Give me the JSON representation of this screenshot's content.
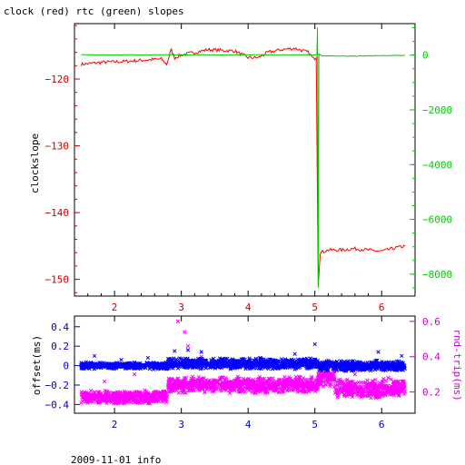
{
  "title": "clock (red) rtc (green) slopes",
  "footer": "2009-11-01 info",
  "colors": {
    "clock": "#ff0000",
    "rtc": "#00cc00",
    "offset": "#0000ff",
    "rndtrip": "#ff00ff",
    "axis_left_top": "#cc0000",
    "axis_right_top": "#00cc00",
    "axis_left_bottom": "#0000cc",
    "axis_right_bottom": "#cc00cc"
  },
  "chart_data": [
    {
      "type": "line",
      "name": "top",
      "title": "clock (red) rtc (green) slopes",
      "ylabel": "clockslope",
      "xlim": [
        1.4,
        6.5
      ],
      "ylim": [
        -152.5,
        -111.7
      ],
      "y2lim": [
        -8800,
        1150
      ],
      "xticks": [
        2,
        3,
        4,
        5,
        6
      ],
      "yticks": [
        -120,
        -130,
        -140,
        -150
      ],
      "y2ticks": [
        0,
        -2000,
        -4000,
        -6000,
        -8000
      ],
      "grid": false,
      "series": [
        {
          "name": "clock",
          "axis": "left",
          "x": [
            1.5,
            1.8,
            2.1,
            2.4,
            2.7,
            2.78,
            2.85,
            2.9,
            3.0,
            3.2,
            3.4,
            3.6,
            3.8,
            4.0,
            4.15,
            4.3,
            4.5,
            4.7,
            4.9,
            4.98,
            5.02,
            5.05,
            5.08,
            5.2,
            5.4,
            5.6,
            5.8,
            6.0,
            6.2,
            6.35
          ],
          "y": [
            -117.8,
            -117.5,
            -117.4,
            -117.2,
            -117.0,
            -117.8,
            -115.6,
            -116.8,
            -116.4,
            -116.0,
            -115.6,
            -115.7,
            -115.8,
            -116.8,
            -116.8,
            -116.0,
            -115.6,
            -115.4,
            -116.0,
            -117.0,
            -116.8,
            -151.0,
            -146.0,
            -145.6,
            -145.6,
            -145.4,
            -145.6,
            -145.8,
            -145.3,
            -145.0
          ]
        },
        {
          "name": "rtc",
          "axis": "right",
          "x": [
            1.5,
            2.0,
            2.5,
            3.0,
            3.5,
            4.0,
            4.5,
            4.95,
            5.03,
            5.04,
            5.05,
            5.06,
            5.1,
            5.5,
            6.0,
            6.35
          ],
          "y": [
            10,
            10,
            10,
            10,
            10,
            10,
            10,
            10,
            10,
            1000,
            -8500,
            50,
            -20,
            -40,
            -20,
            -10
          ]
        }
      ]
    },
    {
      "type": "scatter",
      "name": "bottom",
      "ylabel": "offset(ms)",
      "y2label": "rnd-trip(ms)",
      "xlim": [
        1.4,
        6.5
      ],
      "ylim": [
        -0.49,
        0.51
      ],
      "y2lim": [
        0.08,
        0.63
      ],
      "xticks": [
        2,
        3,
        4,
        5,
        6
      ],
      "yticks": [
        0.4,
        0.2,
        0,
        -0.2,
        -0.4
      ],
      "y2ticks": [
        0.6,
        0.4,
        0.2
      ],
      "grid": false,
      "series": [
        {
          "name": "offset",
          "axis": "left",
          "bands": [
            {
              "x0": 1.5,
              "x1": 2.8,
              "center": 0.0,
              "spread": 0.04
            },
            {
              "x0": 2.8,
              "x1": 5.05,
              "center": 0.02,
              "spread": 0.06
            },
            {
              "x0": 5.05,
              "x1": 6.35,
              "center": 0.0,
              "spread": 0.06
            }
          ],
          "outliers": [
            [
              1.7,
              0.1
            ],
            [
              2.1,
              0.06
            ],
            [
              2.5,
              0.08
            ],
            [
              2.9,
              0.15
            ],
            [
              3.1,
              0.16
            ],
            [
              3.3,
              0.14
            ],
            [
              4.7,
              0.12
            ],
            [
              5.0,
              0.22
            ],
            [
              5.95,
              0.14
            ],
            [
              6.3,
              0.1
            ]
          ]
        },
        {
          "name": "rndtrip",
          "axis": "right",
          "bands": [
            {
              "x0": 1.5,
              "x1": 2.8,
              "center": 0.17,
              "spread": 0.04
            },
            {
              "x0": 2.8,
              "x1": 5.05,
              "center": 0.24,
              "spread": 0.05
            },
            {
              "x0": 5.05,
              "x1": 5.3,
              "center": 0.28,
              "spread": 0.06
            },
            {
              "x0": 5.3,
              "x1": 6.35,
              "center": 0.22,
              "spread": 0.06
            }
          ],
          "outliers": [
            [
              2.95,
              0.6
            ],
            [
              3.05,
              0.54
            ],
            [
              3.1,
              0.46
            ],
            [
              3.3,
              0.4
            ],
            [
              4.4,
              0.38
            ],
            [
              1.85,
              0.26
            ],
            [
              2.3,
              0.3
            ],
            [
              5.2,
              0.38
            ],
            [
              5.6,
              0.3
            ],
            [
              6.1,
              0.28
            ]
          ]
        }
      ]
    }
  ]
}
